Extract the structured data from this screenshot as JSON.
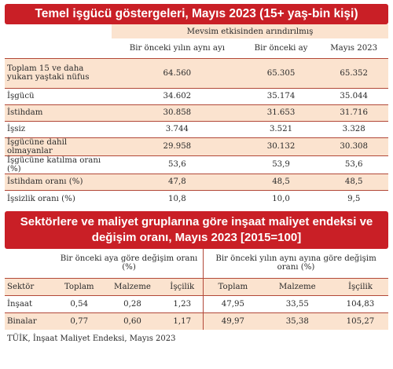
{
  "table1": {
    "title": "Temel işgücü göstergeleri, Mayıs 2023 (15+ yaş-bin kişi)",
    "group_header": "Mevsim etkisinden arındırılmış",
    "columns": [
      "Bir önceki yılın aynı ayı",
      "Bir önceki ay",
      "Mayıs 2023"
    ],
    "rows": [
      {
        "label": "Toplam 15 ve daha yukarı yaştaki nüfus",
        "values": [
          "64.560",
          "65.305",
          "65.352"
        ]
      },
      {
        "label": "İşgücü",
        "values": [
          "34.602",
          "35.174",
          "35.044"
        ]
      },
      {
        "label": "İstihdam",
        "values": [
          "30.858",
          "31.653",
          "31.716"
        ]
      },
      {
        "label": "İşsiz",
        "values": [
          "3.744",
          "3.521",
          "3.328"
        ]
      },
      {
        "label": "İşgücüne dahil olmayanlar",
        "values": [
          "29.958",
          "30.132",
          "30.308"
        ]
      },
      {
        "label": "İşgücüne katılma oranı (%)",
        "values": [
          "53,6",
          "53,9",
          "53,6"
        ]
      },
      {
        "label": "İstihdam oranı (%)",
        "values": [
          "47,8",
          "48,5",
          "48,5"
        ]
      },
      {
        "label": "İşsizlik oranı (%)",
        "values": [
          "10,8",
          "10,0",
          "9,5"
        ]
      }
    ]
  },
  "table2": {
    "title_line1": "Sektörlere ve maliyet gruplarına göre inşaat maliyet endeksi ve",
    "title_line2": "değişim oranı, Mayıs 2023 [2015=100]",
    "group1": "Bir önceki aya göre değişim oranı (%)",
    "group2": "Bir önceki yılın aynı ayına göre değişim oranı (%)",
    "sector_header": "Sektör",
    "columns": [
      "Toplam",
      "Malzeme",
      "İşçilik",
      "Toplam",
      "Malzeme",
      "İşçilik"
    ],
    "rows": [
      {
        "label": "İnşaat",
        "values": [
          "0,54",
          "0,28",
          "1,23",
          "47,95",
          "33,55",
          "104,83"
        ]
      },
      {
        "label": "Binalar",
        "values": [
          "0,77",
          "0,60",
          "1,17",
          "49,97",
          "35,38",
          "105,27"
        ]
      }
    ]
  },
  "source": "TÜİK, İnşaat Maliyet Endeksi, Mayıs 2023"
}
